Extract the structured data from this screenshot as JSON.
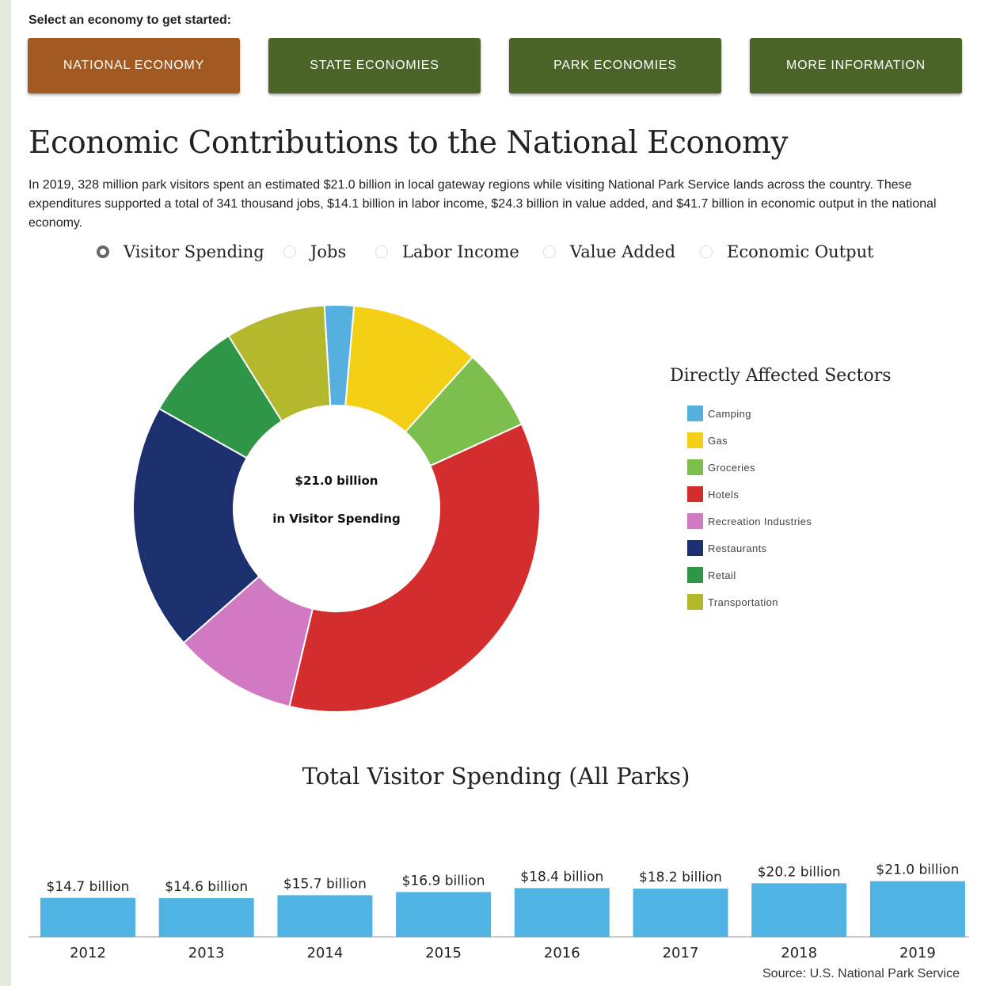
{
  "header": {
    "prompt": "Select an economy to get started:"
  },
  "nav": [
    {
      "label": "NATIONAL ECONOMY",
      "active": true
    },
    {
      "label": "STATE ECONOMIES",
      "active": false
    },
    {
      "label": "PARK ECONOMIES",
      "active": false
    },
    {
      "label": "MORE INFORMATION",
      "active": false
    }
  ],
  "page_title": "Economic Contributions to the National Economy",
  "intro": "In 2019, 328 million park visitors spent an estimated $21.0 billion in local gateway regions while visiting National Park Service lands across the country. These expenditures supported a total of 341 thousand jobs, $14.1 billion in labor income, $24.3 billion in value added, and $41.7 billion in economic output in the national economy.",
  "metrics": [
    {
      "label": "Visitor Spending",
      "selected": true
    },
    {
      "label": "Jobs",
      "selected": false
    },
    {
      "label": "Labor Income",
      "selected": false
    },
    {
      "label": "Value Added",
      "selected": false
    },
    {
      "label": "Economic Output",
      "selected": false
    }
  ],
  "colors": {
    "accent_active": "#a35a22",
    "accent_inactive": "#4b6428",
    "bar": "#4fb3e3"
  },
  "chart_data": [
    {
      "type": "pie",
      "center_line1": "$21.0 billion",
      "center_line2": "in Visitor Spending",
      "legend_title": "Directly Affected Sectors",
      "categories": [
        "Camping",
        "Gas",
        "Groceries",
        "Hotels",
        "Recreation Industries",
        "Restaurants",
        "Retail",
        "Transportation"
      ],
      "colors": [
        "#55b0e0",
        "#f3cf16",
        "#7dbf4d",
        "#d42d2d",
        "#d179c2",
        "#1c2f6e",
        "#2e9646",
        "#b3b82c"
      ],
      "values": [
        0.5,
        2.2,
        1.4,
        7.6,
        2.1,
        4.2,
        1.7,
        1.7
      ]
    },
    {
      "type": "bar",
      "title": "Total Visitor Spending (All Parks)",
      "categories": [
        "2012",
        "2013",
        "2014",
        "2015",
        "2016",
        "2017",
        "2018",
        "2019"
      ],
      "values": [
        14.7,
        14.6,
        15.7,
        16.9,
        18.4,
        18.2,
        20.2,
        21.0
      ],
      "data_labels": [
        "$14.7 billion",
        "$14.6 billion",
        "$15.7 billion",
        "$16.9 billion",
        "$18.4 billion",
        "$18.2 billion",
        "$20.2 billion",
        "$21.0 billion"
      ],
      "source": "Source: U.S. National Park Service"
    }
  ]
}
